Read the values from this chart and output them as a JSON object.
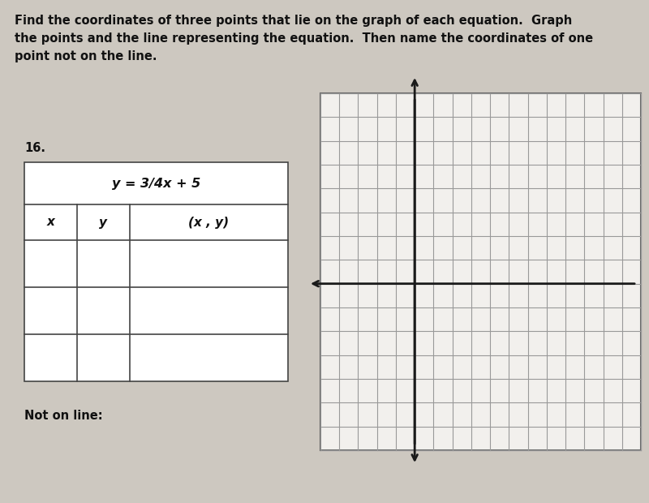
{
  "title_text": "Find the coordinates of three points that lie on the graph of each equation.  Graph\nthe points and the line representing the equation.  Then name the coordinates of one\npoint not on the line.",
  "problem_number": "16.",
  "equation": "y = 3/4x + 5",
  "col_headers": [
    "x",
    "y",
    "(x , y)"
  ],
  "bg_color": "#cdc8c0",
  "table_bg": "#ffffff",
  "grid_bg": "#f0eeec",
  "grid_line_color": "#888888",
  "axis_color": "#111111",
  "text_color": "#111111",
  "not_on_line_label": "Not on line:",
  "title_fontsize": 10.5,
  "equation_fontsize": 11.5,
  "col_header_fontsize": 11,
  "label_fontsize": 10.5,
  "n_cols": 17,
  "n_rows": 15,
  "axis_col": 5,
  "axis_row": 8
}
